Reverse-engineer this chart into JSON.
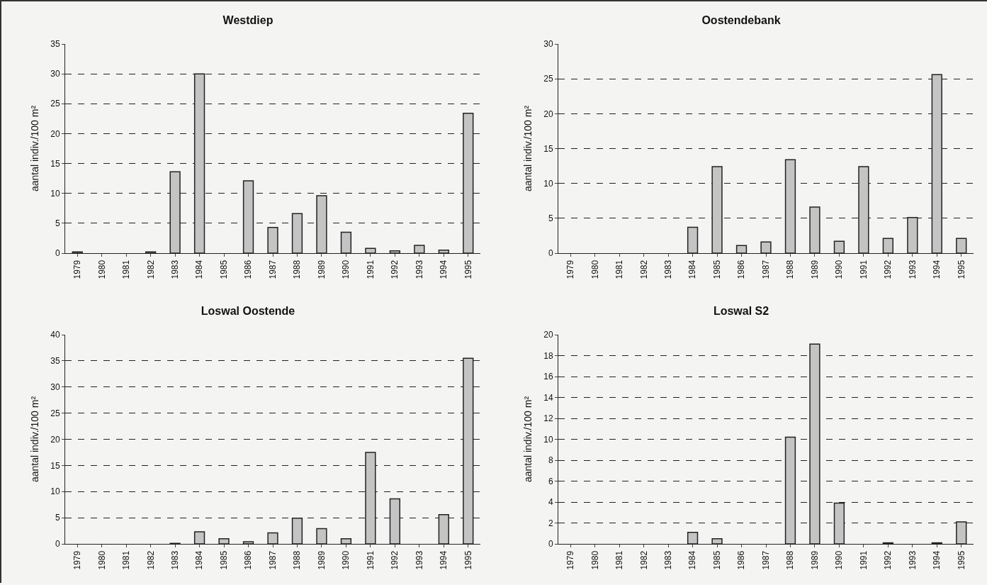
{
  "chart_data": [
    {
      "type": "bar",
      "title": "Westdiep",
      "ylabel": "aantal indiv./100 m²",
      "categories": [
        "1979",
        "1980",
        "1981",
        "1982",
        "1983",
        "1984",
        "1985",
        "1986",
        "1987",
        "1988",
        "1989",
        "1990",
        "1991",
        "1992",
        "1993",
        "1994",
        "1995"
      ],
      "values": [
        0.2,
        0,
        0,
        0.2,
        13.6,
        30,
        0,
        12.1,
        4.3,
        6.6,
        9.6,
        3.5,
        0.8,
        0.4,
        1.3,
        0.5,
        23.4
      ],
      "color": "#c4c4c4",
      "ylim": [
        0,
        35
      ],
      "yticks": [
        0,
        5,
        10,
        15,
        20,
        25,
        30,
        35
      ],
      "grid": "y"
    },
    {
      "type": "bar",
      "title": "Oostendebank",
      "ylabel": "aantal indiv./100 m²",
      "categories": [
        "1979",
        "1980",
        "1981",
        "1982",
        "1983",
        "1984",
        "1985",
        "1986",
        "1987",
        "1988",
        "1989",
        "1990",
        "1991",
        "1992",
        "1993",
        "1994",
        "1995"
      ],
      "values": [
        0,
        0,
        0,
        0,
        0,
        3.7,
        12.4,
        1.1,
        1.6,
        13.4,
        6.6,
        1.7,
        12.4,
        2.1,
        5.1,
        25.6,
        2.1
      ],
      "color": "#c4c4c4",
      "ylim": [
        0,
        30
      ],
      "yticks": [
        0,
        5,
        10,
        15,
        20,
        25,
        30
      ],
      "grid": "y"
    },
    {
      "type": "bar",
      "title": "Loswal Oostende",
      "ylabel": "aantal indiv./100 m²",
      "categories": [
        "1979",
        "1980",
        "1981",
        "1982",
        "1983",
        "1984",
        "1985",
        "1986",
        "1987",
        "1988",
        "1989",
        "1990",
        "1991",
        "1992",
        "1993",
        "1994",
        "1995"
      ],
      "values": [
        0,
        0,
        0,
        0,
        0.1,
        2.3,
        1.0,
        0.4,
        2.1,
        4.9,
        2.9,
        1.0,
        17.5,
        8.6,
        0,
        5.6,
        35.5
      ],
      "color": "#c4c4c4",
      "ylim": [
        0,
        40
      ],
      "yticks": [
        0,
        5,
        10,
        15,
        20,
        25,
        30,
        35,
        40
      ],
      "grid": "y"
    },
    {
      "type": "bar",
      "title": "Loswal S2",
      "ylabel": "aantal indiv./100 m²",
      "categories": [
        "1979",
        "1980",
        "1981",
        "1982",
        "1983",
        "1984",
        "1985",
        "1986",
        "1987",
        "1988",
        "1989",
        "1990",
        "1991",
        "1992",
        "1993",
        "1994",
        "1995"
      ],
      "values": [
        0,
        0,
        0,
        0,
        0,
        1.1,
        0.5,
        0,
        0,
        10.2,
        19.1,
        3.9,
        0,
        0.1,
        0,
        0.1,
        2.1
      ],
      "color": "#c4c4c4",
      "ylim": [
        0,
        20
      ],
      "yticks": [
        0,
        2,
        4,
        6,
        8,
        10,
        12,
        14,
        16,
        18,
        20
      ],
      "grid": "y"
    }
  ]
}
